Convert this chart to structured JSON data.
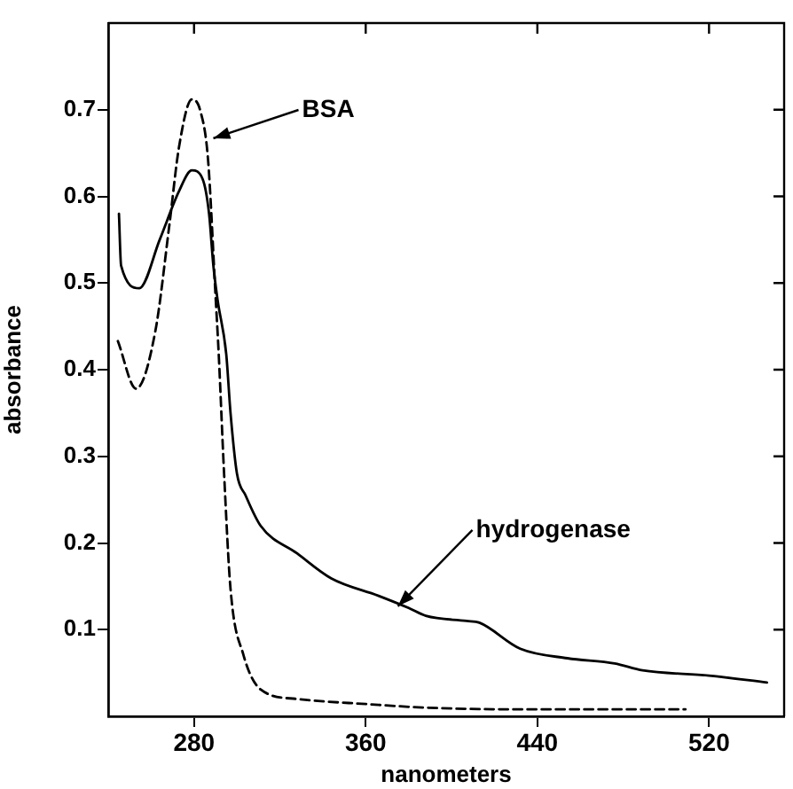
{
  "chart_data": {
    "type": "line",
    "xlabel": "nanometers",
    "ylabel": "absorbance",
    "xlim": [
      240,
      555
    ],
    "ylim": [
      0,
      0.8
    ],
    "xticks": [
      280,
      360,
      440,
      520
    ],
    "yticks": [
      0.1,
      0.2,
      0.3,
      0.4,
      0.5,
      0.6,
      0.7
    ],
    "grid": false,
    "legend": false,
    "marker": "none",
    "series": [
      {
        "color": "#000000",
        "line_style": "solid",
        "x": [
          245,
          246,
          254.5,
          264,
          273,
          279,
          284,
          287,
          289,
          291,
          295,
          297,
          300,
          304,
          311,
          328,
          344,
          366,
          380,
          388,
          407,
          413,
          432,
          454,
          476,
          489,
          520,
          547
        ],
        "values": [
          0.58,
          0.52,
          0.494,
          0.55,
          0.606,
          0.63,
          0.62,
          0.58,
          0.52,
          0.48,
          0.418,
          0.35,
          0.28,
          0.255,
          0.22,
          0.188,
          0.159,
          0.139,
          0.125,
          0.116,
          0.11,
          0.108,
          0.078,
          0.067,
          0.061,
          0.053,
          0.047,
          0.039
        ]
      },
      {
        "color": "#000000",
        "line_style": "dashed",
        "x": [
          244.5,
          253,
          262,
          268.5,
          273,
          279,
          283,
          286.5,
          290,
          291.5,
          294,
          297,
          303,
          311,
          328,
          361,
          388,
          430,
          470,
          509
        ],
        "values": [
          0.433,
          0.378,
          0.445,
          0.567,
          0.657,
          0.712,
          0.698,
          0.643,
          0.486,
          0.418,
          0.28,
          0.147,
          0.071,
          0.031,
          0.02,
          0.014,
          0.01,
          0.008,
          0.008,
          0.008
        ]
      }
    ],
    "annotations": [
      {
        "text": "BSA",
        "x": 289,
        "y": 0.667
      },
      {
        "text": "hydrogenase",
        "x": 375,
        "y": 0.127
      }
    ]
  }
}
